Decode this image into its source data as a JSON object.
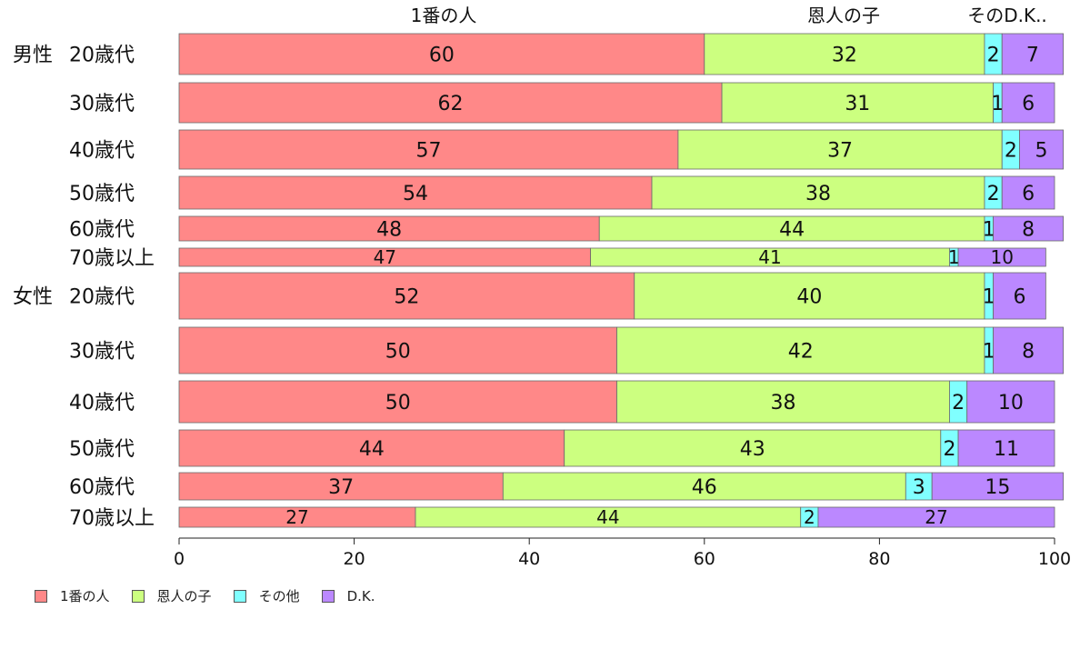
{
  "chart_data": {
    "type": "bar",
    "orientation": "horizontal",
    "stacked": true,
    "xlim": [
      0,
      100
    ],
    "xticks": [
      "0",
      "20",
      "40",
      "60",
      "80",
      "100"
    ],
    "top_labels": [
      "1番の人",
      "恩人の子",
      "そのD.K.."
    ],
    "categories": [
      {
        "group": "男性",
        "label": "20歳代"
      },
      {
        "group": "",
        "label": "30歳代"
      },
      {
        "group": "",
        "label": "40歳代"
      },
      {
        "group": "",
        "label": "50歳代"
      },
      {
        "group": "",
        "label": "60歳代"
      },
      {
        "group": "",
        "label": "70歳以上"
      },
      {
        "group": "女性",
        "label": "20歳代"
      },
      {
        "group": "",
        "label": "30歳代"
      },
      {
        "group": "",
        "label": "40歳代"
      },
      {
        "group": "",
        "label": "50歳代"
      },
      {
        "group": "",
        "label": "60歳代"
      },
      {
        "group": "",
        "label": "70歳以上"
      }
    ],
    "series": [
      {
        "name": "1番の人",
        "color": "#FF8888",
        "values": [
          60,
          62,
          57,
          54,
          48,
          47,
          52,
          50,
          50,
          44,
          37,
          27
        ]
      },
      {
        "name": "恩人の子",
        "color": "#CCFF80",
        "values": [
          32,
          31,
          37,
          38,
          44,
          41,
          40,
          42,
          38,
          43,
          46,
          44
        ]
      },
      {
        "name": "その他",
        "color": "#80FFFF",
        "values": [
          2,
          1,
          2,
          2,
          1,
          1,
          1,
          1,
          2,
          2,
          3,
          2
        ]
      },
      {
        "name": "D.K.",
        "color": "#BB88FF",
        "values": [
          7,
          6,
          5,
          6,
          8,
          10,
          6,
          8,
          10,
          11,
          15,
          27
        ]
      }
    ],
    "grid": false,
    "legend_position": "bottom-left"
  }
}
